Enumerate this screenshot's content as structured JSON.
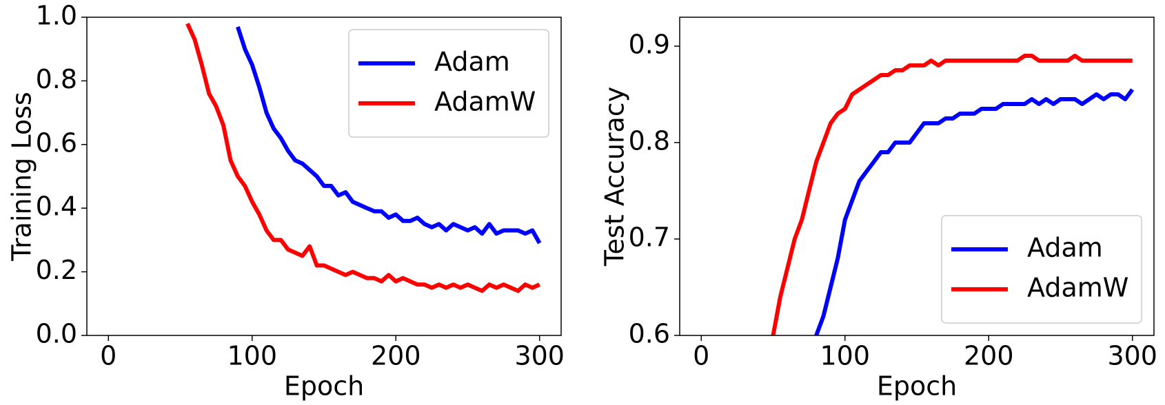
{
  "chart_data": [
    {
      "type": "line",
      "xlabel": "Epoch",
      "ylabel": "Training Loss",
      "x": [
        0,
        5,
        10,
        15,
        20,
        25,
        30,
        35,
        40,
        45,
        50,
        55,
        60,
        65,
        70,
        75,
        80,
        85,
        90,
        95,
        100,
        105,
        110,
        115,
        120,
        125,
        130,
        135,
        140,
        145,
        150,
        155,
        160,
        165,
        170,
        175,
        180,
        185,
        190,
        195,
        200,
        205,
        210,
        215,
        220,
        225,
        230,
        235,
        240,
        245,
        250,
        255,
        260,
        265,
        270,
        275,
        280,
        285,
        290,
        295,
        300
      ],
      "xlim": [
        -15,
        315
      ],
      "xticks": [
        0,
        100,
        200,
        300
      ],
      "ylim": [
        0,
        1
      ],
      "yticks": [
        {
          "value": 0,
          "label": "0.0"
        },
        0.2,
        0.4,
        0.6,
        0.8,
        {
          "value": 1,
          "label": "1.0"
        }
      ],
      "legend": "upper right",
      "series": [
        {
          "name": "Adam",
          "color": "#0000ff",
          "values": [
            null,
            null,
            null,
            null,
            null,
            null,
            null,
            null,
            null,
            null,
            null,
            null,
            null,
            null,
            null,
            null,
            null,
            null,
            0.97,
            0.9,
            0.85,
            0.78,
            0.7,
            0.65,
            0.62,
            0.58,
            0.55,
            0.54,
            0.52,
            0.5,
            0.47,
            0.47,
            0.44,
            0.45,
            0.42,
            0.41,
            0.4,
            0.39,
            0.39,
            0.37,
            0.38,
            0.36,
            0.36,
            0.37,
            0.35,
            0.34,
            0.35,
            0.33,
            0.35,
            0.34,
            0.33,
            0.34,
            0.32,
            0.35,
            0.32,
            0.33,
            0.33,
            0.33,
            0.32,
            0.33,
            0.29
          ]
        },
        {
          "name": "AdamW",
          "color": "#ff0000",
          "values": [
            null,
            null,
            null,
            null,
            null,
            null,
            null,
            null,
            null,
            null,
            null,
            0.98,
            0.93,
            0.85,
            0.76,
            0.72,
            0.66,
            0.55,
            0.5,
            0.47,
            0.42,
            0.38,
            0.33,
            0.3,
            0.3,
            0.27,
            0.26,
            0.25,
            0.28,
            0.22,
            0.22,
            0.21,
            0.2,
            0.19,
            0.2,
            0.19,
            0.18,
            0.18,
            0.17,
            0.19,
            0.17,
            0.18,
            0.17,
            0.16,
            0.16,
            0.15,
            0.16,
            0.15,
            0.16,
            0.15,
            0.16,
            0.15,
            0.14,
            0.16,
            0.15,
            0.16,
            0.15,
            0.14,
            0.16,
            0.15,
            0.16
          ]
        }
      ]
    },
    {
      "type": "line",
      "xlabel": "Epoch",
      "ylabel": "Test Accuracy",
      "x": [
        0,
        5,
        10,
        15,
        20,
        25,
        30,
        35,
        40,
        45,
        50,
        55,
        60,
        65,
        70,
        75,
        80,
        85,
        90,
        95,
        100,
        105,
        110,
        115,
        120,
        125,
        130,
        135,
        140,
        145,
        150,
        155,
        160,
        165,
        170,
        175,
        180,
        185,
        190,
        195,
        200,
        205,
        210,
        215,
        220,
        225,
        230,
        235,
        240,
        245,
        250,
        255,
        260,
        265,
        270,
        275,
        280,
        285,
        290,
        295,
        300
      ],
      "xlim": [
        -15,
        315
      ],
      "xticks": [
        0,
        100,
        200,
        300
      ],
      "ylim": [
        0.6,
        0.93
      ],
      "yticks": [
        0.6,
        0.7,
        0.8,
        0.9
      ],
      "legend": "lower right",
      "series": [
        {
          "name": "Adam",
          "color": "#0000ff",
          "values": [
            null,
            null,
            null,
            null,
            null,
            null,
            null,
            null,
            null,
            null,
            null,
            null,
            null,
            null,
            null,
            null,
            0.6,
            0.62,
            0.65,
            0.68,
            0.72,
            0.74,
            0.76,
            0.77,
            0.78,
            0.79,
            0.79,
            0.8,
            0.8,
            0.8,
            0.81,
            0.82,
            0.82,
            0.82,
            0.825,
            0.825,
            0.83,
            0.83,
            0.83,
            0.835,
            0.835,
            0.835,
            0.84,
            0.84,
            0.84,
            0.84,
            0.845,
            0.84,
            0.845,
            0.84,
            0.845,
            0.845,
            0.845,
            0.84,
            0.845,
            0.85,
            0.845,
            0.85,
            0.85,
            0.845,
            0.855
          ]
        },
        {
          "name": "AdamW",
          "color": "#ff0000",
          "values": [
            null,
            null,
            null,
            null,
            null,
            null,
            null,
            null,
            null,
            null,
            0.6,
            0.64,
            0.67,
            0.7,
            0.72,
            0.75,
            0.78,
            0.8,
            0.82,
            0.83,
            0.835,
            0.85,
            0.855,
            0.86,
            0.865,
            0.87,
            0.87,
            0.875,
            0.875,
            0.88,
            0.88,
            0.88,
            0.885,
            0.88,
            0.885,
            0.885,
            0.885,
            0.885,
            0.885,
            0.885,
            0.885,
            0.885,
            0.885,
            0.885,
            0.885,
            0.89,
            0.89,
            0.885,
            0.885,
            0.885,
            0.885,
            0.885,
            0.89,
            0.885,
            0.885,
            0.885,
            0.885,
            0.885,
            0.885,
            0.885,
            0.885
          ]
        }
      ]
    }
  ]
}
